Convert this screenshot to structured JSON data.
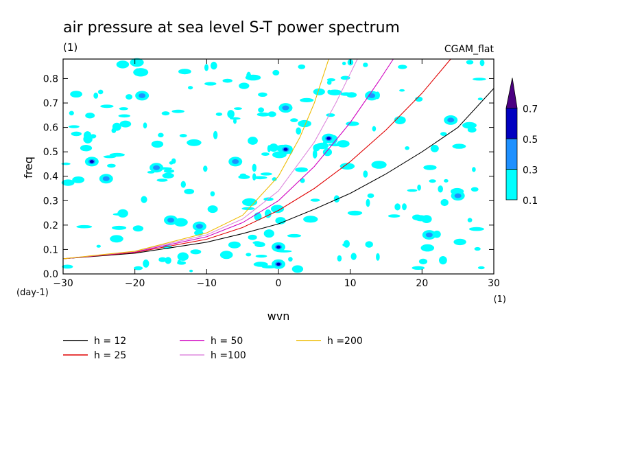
{
  "chart_data": {
    "type": "heatmap",
    "title": "air pressure at sea level S-T power spectrum",
    "units_label": "(1)",
    "dataset": "CGAM_flat",
    "xlabel": "wvn",
    "ylabel": "freq",
    "x_unit": "(1)",
    "y_unit": "(day-1)",
    "xlim": [
      -30,
      30
    ],
    "ylim": [
      0,
      0.88
    ],
    "x_ticks": [
      -30,
      -20,
      -10,
      0,
      10,
      20,
      30
    ],
    "y_ticks": [
      0.0,
      0.1,
      0.2,
      0.3,
      0.4,
      0.5,
      0.6,
      0.7,
      0.8
    ],
    "colorbar": {
      "levels": [
        "0.1",
        "0.3",
        "0.5",
        "0.7"
      ],
      "colors": [
        "#00ffff",
        "#1e90ff",
        "#0000c0",
        "#4b0082"
      ]
    },
    "contour_patches": [
      {
        "x": 0,
        "y": 0.11,
        "level": 2
      },
      {
        "x": 0,
        "y": 0.04,
        "level": 2
      },
      {
        "x": 7,
        "y": 0.555,
        "level": 2
      },
      {
        "x": -26,
        "y": 0.46,
        "level": 2
      },
      {
        "x": 1,
        "y": 0.51,
        "level": 2
      },
      {
        "x": -17,
        "y": 0.435,
        "level": 1
      },
      {
        "x": -15,
        "y": 0.22,
        "level": 1
      },
      {
        "x": -11,
        "y": 0.195,
        "level": 1
      },
      {
        "x": 1,
        "y": 0.68,
        "level": 1
      },
      {
        "x": 24,
        "y": 0.63,
        "level": 1
      },
      {
        "x": 13,
        "y": 0.73,
        "level": 1
      },
      {
        "x": 25,
        "y": 0.32,
        "level": 1
      },
      {
        "x": 21,
        "y": 0.16,
        "level": 1
      },
      {
        "x": -6,
        "y": 0.46,
        "level": 1
      },
      {
        "x": -19,
        "y": 0.73,
        "level": 1
      },
      {
        "x": -24,
        "y": 0.39,
        "level": 1
      }
    ],
    "series": [
      {
        "name": "h = 12",
        "color": "#000000",
        "x": [
          -30,
          -20,
          -10,
          -5,
          0,
          5,
          10,
          15,
          20,
          25,
          30
        ],
        "y": [
          0.062,
          0.085,
          0.13,
          0.165,
          0.205,
          0.265,
          0.33,
          0.41,
          0.5,
          0.6,
          0.76
        ]
      },
      {
        "name": "h = 25",
        "color": "#e00000",
        "x": [
          -30,
          -20,
          -10,
          -5,
          0,
          5,
          10,
          15,
          20,
          24
        ],
        "y": [
          0.062,
          0.088,
          0.142,
          0.19,
          0.26,
          0.35,
          0.46,
          0.59,
          0.74,
          0.88
        ]
      },
      {
        "name": "h = 50",
        "color": "#d000c0",
        "x": [
          -30,
          -20,
          -10,
          -5,
          0,
          5,
          10,
          14,
          16
        ],
        "y": [
          0.062,
          0.09,
          0.152,
          0.21,
          0.3,
          0.44,
          0.62,
          0.79,
          0.88
        ]
      },
      {
        "name": "h =100",
        "color": "#dd88dd",
        "x": [
          -30,
          -20,
          -10,
          -5,
          0,
          5,
          8,
          11
        ],
        "y": [
          0.062,
          0.092,
          0.16,
          0.225,
          0.34,
          0.54,
          0.7,
          0.88
        ]
      },
      {
        "name": "h =200",
        "color": "#eebb00",
        "x": [
          -30,
          -20,
          -10,
          -5,
          0,
          3,
          5,
          7
        ],
        "y": [
          0.062,
          0.093,
          0.168,
          0.24,
          0.4,
          0.56,
          0.7,
          0.88
        ]
      }
    ]
  }
}
